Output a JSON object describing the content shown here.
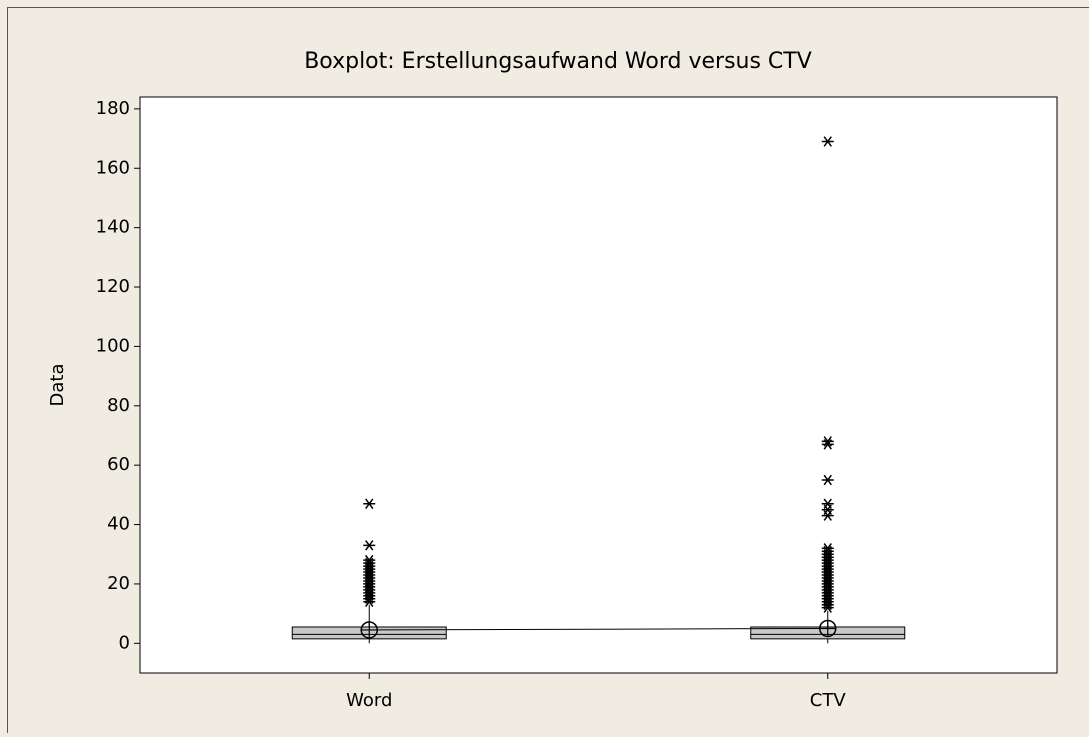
{
  "chart_data": {
    "type": "box",
    "title": "Boxplot: Erstellungsaufwand  Word versus CTV",
    "y_label": "Data",
    "categories": [
      "Word",
      "CTV"
    ],
    "series": [
      {
        "name": "Word",
        "whisker_low": 0,
        "q1": 1.5,
        "median": 3,
        "q3": 5.5,
        "whisker_high": 13,
        "mean": 4.5,
        "outliers": [
          14,
          15,
          16,
          17,
          18,
          19,
          20,
          21,
          22,
          23,
          24,
          25,
          26,
          27,
          28,
          33,
          47
        ]
      },
      {
        "name": "CTV",
        "whisker_low": 0,
        "q1": 1.5,
        "median": 3,
        "q3": 5.5,
        "whisker_high": 11,
        "mean": 5,
        "outliers": [
          12,
          13,
          14,
          15,
          16,
          17,
          18,
          19,
          20,
          21,
          22,
          23,
          24,
          25,
          26,
          27,
          28,
          29,
          30,
          31,
          32,
          43,
          45,
          47,
          55,
          67,
          68,
          169
        ]
      }
    ],
    "box_color": "#c8c8c8",
    "connect_means": true,
    "ylim": [
      -10,
      184
    ],
    "yticks": [
      0,
      20,
      40,
      60,
      80,
      100,
      120,
      140,
      160,
      180
    ]
  }
}
